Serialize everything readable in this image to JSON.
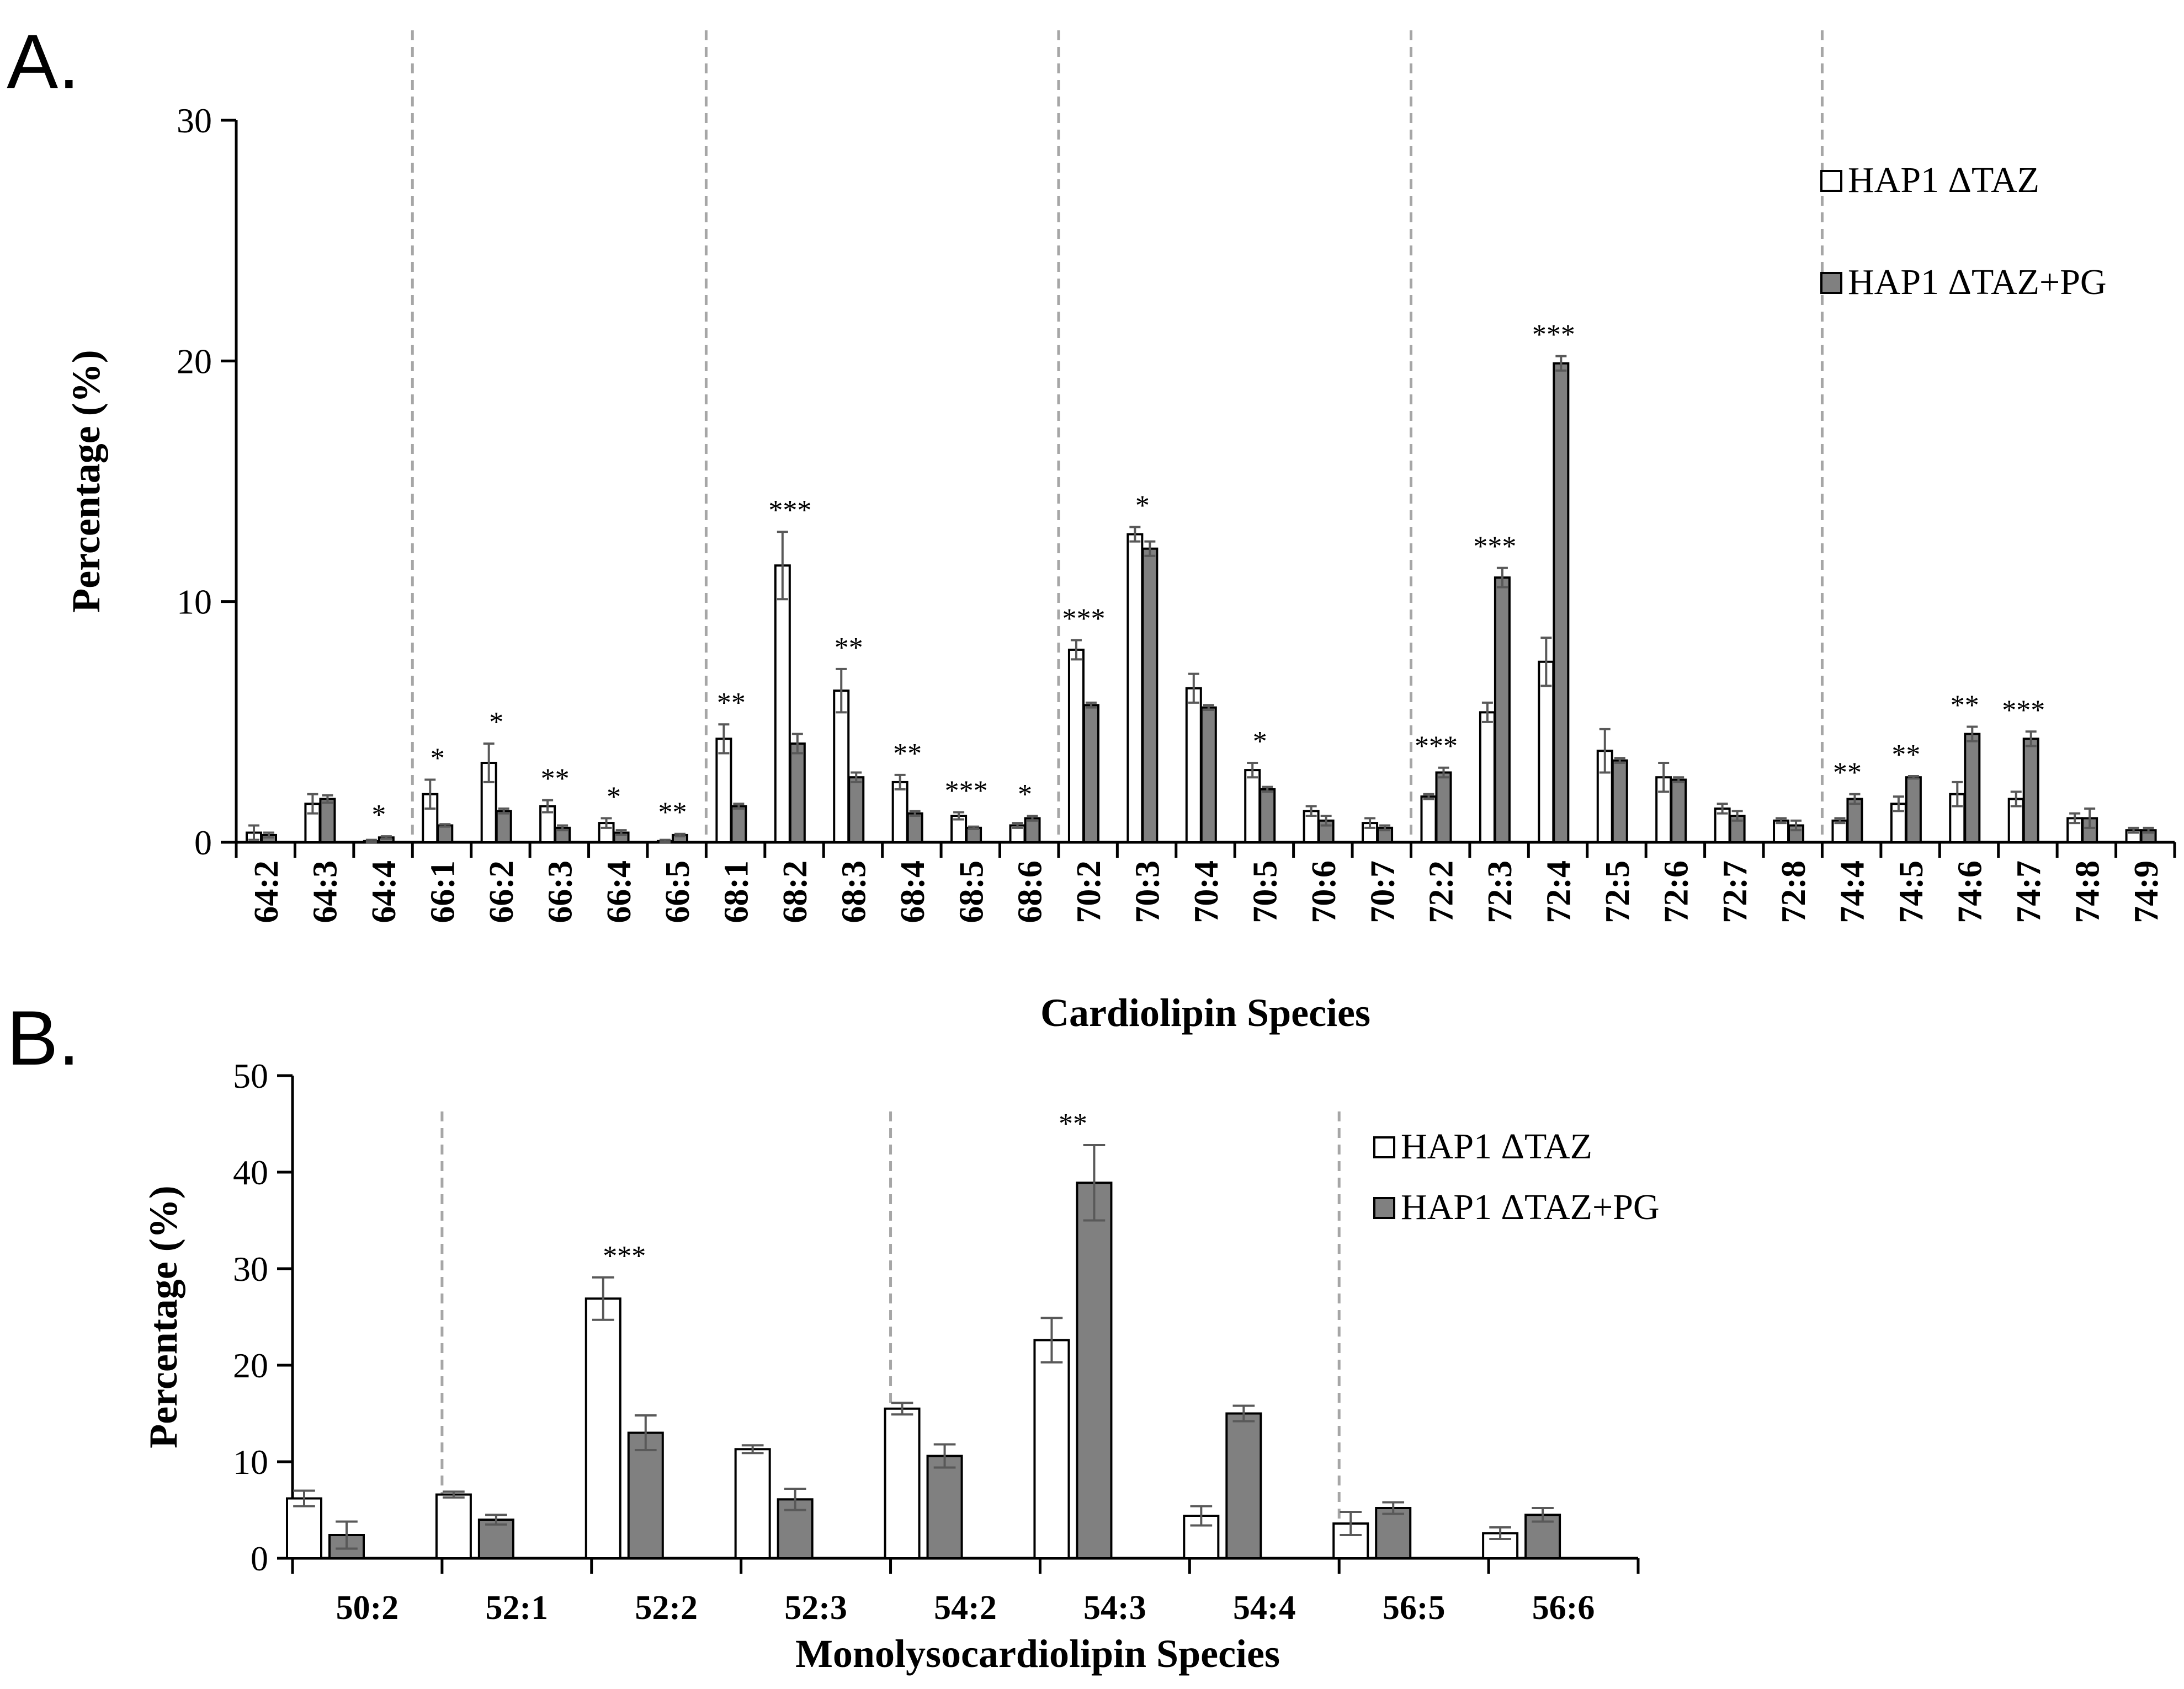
{
  "panels": [
    {
      "letter": "A.",
      "chart_data": {
        "type": "bar",
        "title": "",
        "xlabel": "Cardiolipin Species",
        "ylabel": "Percentage (%)",
        "ylim": [
          0,
          30
        ],
        "yticks": [
          "0",
          "10",
          "20",
          "30"
        ],
        "categories": [
          "64:2",
          "64:3",
          "64:4",
          "66:1",
          "66:2",
          "66:3",
          "66:4",
          "66:5",
          "68:1",
          "68:2",
          "68:3",
          "68:4",
          "68:5",
          "68:6",
          "70:2",
          "70:3",
          "70:4",
          "70:5",
          "70:6",
          "70:7",
          "72:2",
          "72:3",
          "72:4",
          "72:5",
          "72:6",
          "72:7",
          "72:8",
          "74:4",
          "74:5",
          "74:6",
          "74:7",
          "74:8",
          "74:9"
        ],
        "series": [
          {
            "name": "HAP1 ΔTAZ",
            "color": "#ffffff",
            "values": [
              0.4,
              1.6,
              0.05,
              2.0,
              3.3,
              1.5,
              0.8,
              0.05,
              4.3,
              11.5,
              6.3,
              2.5,
              1.1,
              0.7,
              8.0,
              12.8,
              6.4,
              3.0,
              1.3,
              0.8,
              1.9,
              5.4,
              7.5,
              3.8,
              2.7,
              1.4,
              0.9,
              0.9,
              1.6,
              2.0,
              1.8,
              1.0,
              0.5
            ],
            "errors": [
              0.3,
              0.4,
              0.05,
              0.6,
              0.8,
              0.25,
              0.2,
              0.05,
              0.6,
              1.4,
              0.9,
              0.3,
              0.15,
              0.1,
              0.4,
              0.3,
              0.6,
              0.3,
              0.2,
              0.2,
              0.1,
              0.4,
              1.0,
              0.9,
              0.6,
              0.2,
              0.1,
              0.1,
              0.3,
              0.5,
              0.3,
              0.2,
              0.1
            ]
          },
          {
            "name": "HAP1 ΔTAZ+PG",
            "color": "#808080",
            "values": [
              0.3,
              1.8,
              0.2,
              0.7,
              1.3,
              0.6,
              0.4,
              0.3,
              1.5,
              4.1,
              2.7,
              1.2,
              0.6,
              1.0,
              5.7,
              12.2,
              5.6,
              2.2,
              0.9,
              0.6,
              2.9,
              11.0,
              19.9,
              3.4,
              2.6,
              1.1,
              0.7,
              1.8,
              2.7,
              4.5,
              4.3,
              1.0,
              0.5
            ],
            "errors": [
              0.1,
              0.15,
              0.05,
              0.05,
              0.1,
              0.1,
              0.1,
              0.05,
              0.1,
              0.4,
              0.2,
              0.1,
              0.05,
              0.1,
              0.1,
              0.3,
              0.1,
              0.1,
              0.2,
              0.1,
              0.2,
              0.4,
              0.3,
              0.1,
              0.1,
              0.2,
              0.2,
              0.2,
              0.05,
              0.3,
              0.3,
              0.4,
              0.1
            ]
          }
        ],
        "significance": [
          "",
          "",
          "*",
          "*",
          "*",
          "**",
          "*",
          "**",
          "**",
          "***",
          "**",
          "**",
          "***",
          "*",
          "***",
          "*",
          "",
          "*",
          "",
          "",
          "***",
          "***",
          "***",
          "",
          "",
          "",
          "",
          "**",
          "**",
          "**",
          "***",
          "",
          ""
        ],
        "group_dividers_after": [
          "64:4",
          "66:5",
          "68:6",
          "70:7",
          "72:8"
        ],
        "legend": {
          "position": "top-right",
          "entries": [
            "HAP1 ΔTAZ",
            "HAP1 ΔTAZ+PG"
          ]
        },
        "grid": false
      }
    },
    {
      "letter": "B.",
      "chart_data": {
        "type": "bar",
        "title": "",
        "xlabel": "Monolysocardiolipin Species",
        "ylabel": "Percentage (%)",
        "ylim": [
          0,
          50
        ],
        "yticks": [
          "0",
          "10",
          "20",
          "30",
          "40",
          "50"
        ],
        "categories": [
          "50:2",
          "52:1",
          "52:2",
          "52:3",
          "54:2",
          "54:3",
          "54:4",
          "56:5",
          "56:6"
        ],
        "series": [
          {
            "name": "HAP1 ΔTAZ",
            "color": "#ffffff",
            "values": [
              6.2,
              6.6,
              26.9,
              11.3,
              15.5,
              22.6,
              4.4,
              3.6,
              2.6
            ],
            "errors": [
              0.8,
              0.3,
              2.2,
              0.4,
              0.6,
              2.3,
              1.0,
              1.2,
              0.6
            ]
          },
          {
            "name": "HAP1 ΔTAZ+PG",
            "color": "#808080",
            "values": [
              2.4,
              4.0,
              13.0,
              6.1,
              10.6,
              38.9,
              15.0,
              5.2,
              4.5
            ],
            "errors": [
              1.4,
              0.5,
              1.8,
              1.1,
              1.2,
              3.9,
              0.8,
              0.6,
              0.7
            ]
          }
        ],
        "significance": [
          "",
          "",
          "***",
          "",
          "",
          "**",
          "",
          "",
          ""
        ],
        "group_dividers_after": [
          "50:2",
          "52:3",
          "54:4"
        ],
        "legend": {
          "position": "top-right",
          "entries": [
            "HAP1 ΔTAZ",
            "HAP1 ΔTAZ+PG"
          ]
        },
        "grid": false
      }
    }
  ]
}
